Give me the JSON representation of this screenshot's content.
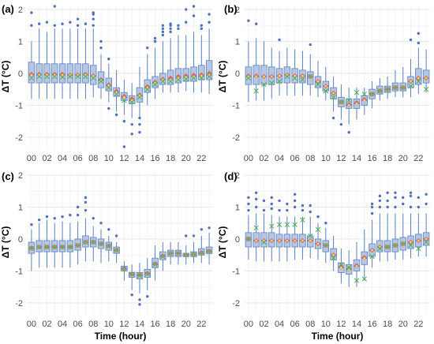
{
  "colors": {
    "box_fill": "#a9bde0",
    "box_stroke": "#5b7fbe",
    "outlier": "#4f73b8",
    "mean_diamond": "#e05050",
    "median_point": "#f5d64a",
    "cross_marker": "#4caf50",
    "grid": "#e6e6e6"
  },
  "chart_data": [
    {
      "type": "box",
      "panel_label": "(a)",
      "x_tick_labels": [
        "00",
        "02",
        "04",
        "06",
        "08",
        "10",
        "12",
        "14",
        "16",
        "18",
        "20",
        "22"
      ],
      "y_tick_labels": [
        "-2",
        "-1",
        "0",
        "1",
        "2"
      ],
      "ylabel": "ΔT (°C)",
      "xlabel": "",
      "ylim": [
        -2.4,
        2.1
      ],
      "hours": [
        0,
        1,
        2,
        3,
        4,
        5,
        6,
        7,
        8,
        9,
        10,
        11,
        12,
        13,
        14,
        15,
        16,
        17,
        18,
        19,
        20,
        21,
        22,
        23
      ],
      "q1": [
        -0.3,
        -0.3,
        -0.3,
        -0.3,
        -0.3,
        -0.3,
        -0.3,
        -0.3,
        -0.35,
        -0.45,
        -0.55,
        -0.72,
        -0.85,
        -0.95,
        -0.9,
        -0.6,
        -0.45,
        -0.35,
        -0.35,
        -0.3,
        -0.25,
        -0.25,
        -0.2,
        -0.2
      ],
      "median": [
        -0.05,
        -0.05,
        -0.05,
        -0.05,
        -0.05,
        -0.05,
        -0.05,
        -0.05,
        -0.08,
        -0.22,
        -0.38,
        -0.6,
        -0.75,
        -0.85,
        -0.7,
        -0.45,
        -0.3,
        -0.2,
        -0.2,
        -0.15,
        -0.12,
        -0.1,
        -0.08,
        -0.05
      ],
      "q3": [
        0.35,
        0.3,
        0.3,
        0.3,
        0.3,
        0.3,
        0.3,
        0.3,
        0.25,
        0.05,
        -0.15,
        -0.45,
        -0.6,
        -0.7,
        -0.45,
        -0.2,
        -0.1,
        0.0,
        0.1,
        0.15,
        0.15,
        0.2,
        0.25,
        0.4
      ],
      "whisker_low": [
        -0.8,
        -0.8,
        -0.8,
        -0.8,
        -0.8,
        -0.8,
        -0.8,
        -0.8,
        -0.75,
        -0.8,
        -0.9,
        -1.2,
        -1.3,
        -1.4,
        -1.4,
        -1.0,
        -0.8,
        -0.6,
        -0.6,
        -0.6,
        -0.55,
        -0.6,
        -0.6,
        -0.65
      ],
      "whisker_high": [
        1.0,
        1.4,
        1.3,
        1.4,
        1.4,
        1.4,
        1.4,
        1.4,
        1.4,
        0.6,
        0.3,
        0.1,
        -0.2,
        -0.3,
        0.2,
        0.6,
        0.8,
        1.0,
        1.1,
        1.2,
        1.2,
        1.3,
        1.2,
        1.4
      ],
      "mean": [
        -0.03,
        -0.03,
        -0.03,
        -0.03,
        -0.03,
        -0.05,
        -0.05,
        -0.03,
        -0.08,
        -0.2,
        -0.36,
        -0.56,
        -0.72,
        -0.8,
        -0.68,
        -0.42,
        -0.28,
        -0.18,
        -0.15,
        -0.1,
        -0.08,
        -0.06,
        -0.05,
        0.0
      ],
      "cross": [
        -0.15,
        -0.1,
        -0.1,
        -0.1,
        -0.12,
        -0.1,
        -0.1,
        -0.1,
        -0.15,
        -0.25,
        -0.45,
        -0.65,
        -0.85,
        -0.9,
        -0.75,
        -0.5,
        -0.35,
        -0.25,
        -0.25,
        -0.2,
        -0.18,
        -0.15,
        -0.15,
        -0.1
      ],
      "outliers": [
        [
          0,
          1.5
        ],
        [
          0,
          1.9
        ],
        [
          1,
          1.55
        ],
        [
          2,
          1.6
        ],
        [
          3,
          1.5
        ],
        [
          3,
          2.1
        ],
        [
          4,
          1.55
        ],
        [
          5,
          1.6
        ],
        [
          6,
          1.5
        ],
        [
          6,
          1.7
        ],
        [
          7,
          1.55
        ],
        [
          8,
          1.5
        ],
        [
          8,
          1.7
        ],
        [
          8,
          1.85
        ],
        [
          8,
          1.9
        ],
        [
          9,
          0.8
        ],
        [
          9,
          1.0
        ],
        [
          10,
          0.45
        ],
        [
          10,
          -1.1
        ],
        [
          11,
          -1.3
        ],
        [
          12,
          -1.5
        ],
        [
          12,
          -2.3
        ],
        [
          13,
          -1.6
        ],
        [
          13,
          -1.9
        ],
        [
          14,
          -1.4
        ],
        [
          14,
          -1.6
        ],
        [
          14,
          -1.85
        ],
        [
          15,
          0.8
        ],
        [
          16,
          1.0
        ],
        [
          16,
          1.1
        ],
        [
          17,
          1.2
        ],
        [
          17,
          1.3
        ],
        [
          17,
          1.4
        ],
        [
          17,
          1.5
        ],
        [
          18,
          1.3
        ],
        [
          18,
          1.4
        ],
        [
          18,
          1.5
        ],
        [
          18,
          1.55
        ],
        [
          19,
          1.4
        ],
        [
          19,
          1.5
        ],
        [
          20,
          2.0
        ],
        [
          20,
          1.6
        ],
        [
          21,
          2.1
        ],
        [
          21,
          1.8
        ],
        [
          22,
          1.4
        ],
        [
          22,
          1.5
        ],
        [
          23,
          1.6
        ],
        [
          23,
          1.85
        ]
      ]
    },
    {
      "type": "box",
      "panel_label": "(b)",
      "x_tick_labels": [
        "00",
        "02",
        "04",
        "06",
        "08",
        "10",
        "12",
        "14",
        "16",
        "18",
        "20",
        "22"
      ],
      "y_tick_labels": [
        "-2",
        "-1",
        "0",
        "1",
        "2"
      ],
      "ylabel": "ΔT (°C)",
      "xlabel": "",
      "ylim": [
        -2.4,
        2.1
      ],
      "hours": [
        0,
        1,
        2,
        3,
        4,
        5,
        6,
        7,
        8,
        9,
        10,
        11,
        12,
        13,
        14,
        15,
        16,
        17,
        18,
        19,
        20,
        21,
        22,
        23
      ],
      "q1": [
        -0.35,
        -0.35,
        -0.35,
        -0.35,
        -0.3,
        -0.3,
        -0.3,
        -0.3,
        -0.35,
        -0.45,
        -0.55,
        -0.8,
        -1.05,
        -1.1,
        -1.1,
        -1.0,
        -0.8,
        -0.65,
        -0.6,
        -0.55,
        -0.55,
        -0.45,
        -0.35,
        -0.3
      ],
      "median": [
        -0.1,
        -0.1,
        -0.1,
        -0.1,
        -0.08,
        -0.05,
        -0.08,
        -0.08,
        -0.1,
        -0.25,
        -0.4,
        -0.62,
        -0.9,
        -1.0,
        -0.95,
        -0.85,
        -0.65,
        -0.55,
        -0.5,
        -0.45,
        -0.45,
        -0.25,
        -0.15,
        -0.15
      ],
      "q3": [
        0.2,
        0.25,
        0.25,
        0.2,
        0.15,
        0.2,
        0.15,
        0.1,
        0.05,
        -0.1,
        -0.25,
        -0.45,
        -0.75,
        -0.8,
        -0.8,
        -0.7,
        -0.5,
        -0.4,
        -0.4,
        -0.3,
        -0.3,
        -0.1,
        0.15,
        0.1
      ],
      "whisker_low": [
        -0.9,
        -0.85,
        -0.85,
        -0.8,
        -0.7,
        -0.7,
        -0.7,
        -0.7,
        -0.7,
        -0.75,
        -0.85,
        -1.2,
        -1.45,
        -1.6,
        -1.45,
        -1.3,
        -1.1,
        -0.85,
        -0.8,
        -0.75,
        -0.75,
        -0.75,
        -0.65,
        -0.6
      ],
      "whisker_high": [
        1.0,
        1.1,
        1.0,
        0.8,
        0.7,
        0.8,
        0.75,
        0.7,
        0.6,
        0.4,
        0.2,
        -0.1,
        -0.35,
        -0.45,
        -0.45,
        -0.45,
        -0.25,
        -0.15,
        -0.1,
        0.1,
        0.2,
        0.45,
        0.8,
        0.75
      ],
      "mean": [
        -0.08,
        -0.08,
        -0.1,
        -0.1,
        -0.08,
        -0.05,
        -0.08,
        -0.08,
        -0.1,
        -0.25,
        -0.4,
        -0.62,
        -0.9,
        -0.98,
        -0.92,
        -0.82,
        -0.65,
        -0.55,
        -0.5,
        -0.45,
        -0.45,
        -0.25,
        -0.15,
        -0.15
      ],
      "cross": [
        -0.15,
        -0.55,
        -0.35,
        -0.3,
        -0.25,
        -0.1,
        -0.15,
        -0.2,
        -0.1,
        -0.35,
        -0.55,
        -0.75,
        -0.9,
        -0.85,
        -0.6,
        -0.65,
        -0.65,
        -0.55,
        -0.5,
        -0.45,
        -0.45,
        -0.4,
        -0.25,
        -0.5
      ],
      "outliers": [
        [
          0,
          1.65
        ],
        [
          1,
          1.55
        ],
        [
          4,
          1.05
        ],
        [
          8,
          0.9
        ],
        [
          11,
          -1.4
        ],
        [
          12,
          -1.6
        ],
        [
          13,
          -1.85
        ],
        [
          21,
          1.05
        ],
        [
          22,
          0.95
        ],
        [
          22,
          1.25
        ]
      ]
    },
    {
      "type": "box",
      "panel_label": "(c)",
      "x_tick_labels": [
        "00",
        "02",
        "04",
        "06",
        "08",
        "10",
        "12",
        "14",
        "16",
        "18",
        "20",
        "22"
      ],
      "y_tick_labels": [
        "-2",
        "-1",
        "0",
        "1",
        "2"
      ],
      "ylabel": "ΔT (°C)",
      "xlabel": "Time (hour)",
      "ylim": [
        -2.4,
        2.1
      ],
      "hours": [
        0,
        1,
        2,
        3,
        4,
        5,
        6,
        7,
        8,
        9,
        10,
        11,
        12,
        13,
        14,
        15,
        16,
        17,
        18,
        19,
        20,
        21,
        22,
        23
      ],
      "q1": [
        -0.45,
        -0.4,
        -0.4,
        -0.4,
        -0.4,
        -0.4,
        -0.35,
        -0.25,
        -0.25,
        -0.3,
        -0.35,
        -0.45,
        -1.0,
        -1.2,
        -1.25,
        -1.2,
        -0.9,
        -0.65,
        -0.55,
        -0.55,
        -0.55,
        -0.55,
        -0.5,
        -0.45
      ],
      "median": [
        -0.3,
        -0.25,
        -0.25,
        -0.25,
        -0.25,
        -0.25,
        -0.2,
        -0.1,
        -0.1,
        -0.15,
        -0.22,
        -0.35,
        -0.95,
        -1.1,
        -1.15,
        -1.1,
        -0.8,
        -0.55,
        -0.45,
        -0.45,
        -0.5,
        -0.5,
        -0.45,
        -0.4
      ],
      "q3": [
        -0.1,
        -0.05,
        -0.05,
        -0.05,
        -0.05,
        -0.05,
        0.0,
        0.1,
        0.05,
        0.0,
        -0.1,
        -0.25,
        -0.85,
        -1.05,
        -1.05,
        -0.95,
        -0.6,
        -0.4,
        -0.35,
        -0.35,
        -0.45,
        -0.4,
        -0.3,
        -0.25
      ],
      "whisker_low": [
        -1.0,
        -0.9,
        -0.9,
        -0.9,
        -0.9,
        -0.9,
        -0.8,
        -0.7,
        -0.7,
        -0.75,
        -0.7,
        -0.75,
        -1.3,
        -1.6,
        -1.7,
        -1.6,
        -1.3,
        -1.0,
        -0.8,
        -0.8,
        -0.8,
        -0.75,
        -0.75,
        -0.8
      ],
      "whisker_high": [
        0.3,
        0.5,
        0.6,
        0.5,
        0.55,
        0.5,
        0.55,
        0.65,
        0.4,
        0.3,
        0.1,
        -0.1,
        -0.7,
        -0.8,
        -0.75,
        -0.6,
        -0.2,
        -0.1,
        -0.1,
        -0.1,
        -0.2,
        -0.1,
        0.1,
        0.2
      ],
      "mean": [
        -0.28,
        -0.25,
        -0.25,
        -0.25,
        -0.25,
        -0.25,
        -0.2,
        -0.1,
        -0.1,
        -0.15,
        -0.22,
        -0.35,
        -0.93,
        -1.1,
        -1.13,
        -1.08,
        -0.78,
        -0.53,
        -0.45,
        -0.45,
        -0.5,
        -0.48,
        -0.43,
        -0.38
      ],
      "cross": [
        -0.3,
        -0.25,
        -0.25,
        -0.25,
        -0.25,
        -0.25,
        -0.2,
        -0.1,
        -0.1,
        -0.15,
        -0.22,
        -0.35,
        -0.95,
        -1.1,
        -1.15,
        -1.1,
        -0.8,
        -0.55,
        -0.45,
        -0.45,
        -0.5,
        -0.5,
        -0.45,
        -0.4
      ],
      "outliers": [
        [
          0,
          0.45
        ],
        [
          1,
          0.6
        ],
        [
          2,
          0.7
        ],
        [
          3,
          0.65
        ],
        [
          4,
          0.7
        ],
        [
          5,
          0.75
        ],
        [
          6,
          0.75
        ],
        [
          6,
          1.0
        ],
        [
          7,
          0.9
        ],
        [
          7,
          1.15
        ],
        [
          7,
          1.3
        ],
        [
          8,
          0.65
        ],
        [
          9,
          0.5
        ],
        [
          10,
          0.3
        ],
        [
          11,
          0.1
        ],
        [
          13,
          -1.75
        ],
        [
          14,
          -1.9
        ],
        [
          14,
          -2.05
        ],
        [
          15,
          -1.8
        ],
        [
          20,
          0.1
        ],
        [
          21,
          0.1
        ],
        [
          22,
          0.3
        ],
        [
          23,
          0.35
        ]
      ]
    },
    {
      "type": "box",
      "panel_label": "(d)",
      "x_tick_labels": [
        "00",
        "02",
        "04",
        "06",
        "08",
        "10",
        "12",
        "14",
        "16",
        "18",
        "20",
        "22"
      ],
      "y_tick_labels": [
        "-2",
        "-1",
        "0",
        "1",
        "2"
      ],
      "ylabel": "ΔT (°C)",
      "xlabel": "Time (hour)",
      "ylim": [
        -2.4,
        2.1
      ],
      "hours": [
        0,
        1,
        2,
        3,
        4,
        5,
        6,
        7,
        8,
        9,
        10,
        11,
        12,
        13,
        14,
        15,
        16,
        17,
        18,
        19,
        20,
        21,
        22,
        23
      ],
      "q1": [
        -0.25,
        -0.25,
        -0.25,
        -0.25,
        -0.25,
        -0.25,
        -0.25,
        -0.25,
        -0.25,
        -0.3,
        -0.4,
        -0.65,
        -1.05,
        -1.1,
        -1.0,
        -0.8,
        -0.55,
        -0.4,
        -0.4,
        -0.4,
        -0.35,
        -0.3,
        -0.25,
        -0.2
      ],
      "median": [
        0.0,
        -0.05,
        -0.05,
        -0.05,
        -0.05,
        -0.05,
        -0.05,
        -0.05,
        -0.05,
        -0.15,
        -0.2,
        -0.5,
        -0.9,
        -0.95,
        -0.85,
        -0.6,
        -0.35,
        -0.25,
        -0.25,
        -0.2,
        -0.15,
        -0.1,
        -0.05,
        0.0
      ],
      "q3": [
        0.2,
        0.2,
        0.2,
        0.2,
        0.15,
        0.15,
        0.15,
        0.15,
        0.1,
        0.0,
        -0.05,
        -0.3,
        -0.75,
        -0.8,
        -0.65,
        -0.4,
        -0.15,
        -0.05,
        -0.05,
        0.0,
        0.05,
        0.1,
        0.15,
        0.2
      ],
      "whisker_low": [
        -0.65,
        -0.7,
        -0.7,
        -0.7,
        -0.7,
        -0.7,
        -0.65,
        -0.65,
        -0.6,
        -0.65,
        -0.75,
        -1.0,
        -1.4,
        -1.5,
        -1.5,
        -1.3,
        -0.9,
        -0.7,
        -0.7,
        -0.65,
        -0.65,
        -0.6,
        -0.55,
        -0.55
      ],
      "whisker_high": [
        0.75,
        0.8,
        0.8,
        0.75,
        0.7,
        0.7,
        0.7,
        0.7,
        0.7,
        0.5,
        0.35,
        0.1,
        -0.3,
        -0.35,
        -0.1,
        0.3,
        0.6,
        0.8,
        0.8,
        0.8,
        0.8,
        0.8,
        0.8,
        0.8
      ],
      "mean": [
        0.0,
        -0.05,
        -0.05,
        -0.05,
        -0.05,
        -0.05,
        -0.05,
        -0.05,
        -0.05,
        -0.15,
        -0.2,
        -0.5,
        -0.88,
        -0.93,
        -0.83,
        -0.58,
        -0.35,
        -0.25,
        -0.25,
        -0.2,
        -0.15,
        -0.1,
        -0.05,
        0.0
      ],
      "cross": [
        0.0,
        0.35,
        -0.1,
        0.4,
        0.45,
        0.45,
        0.45,
        0.6,
        0.1,
        0.3,
        -0.2,
        -0.6,
        -0.8,
        -0.9,
        -1.3,
        -1.25,
        -0.55,
        -0.3,
        -0.25,
        -0.2,
        -0.15,
        -0.2,
        -0.3,
        -0.1
      ],
      "outliers": [
        [
          0,
          0.9
        ],
        [
          0,
          1.1
        ],
        [
          0,
          1.3
        ],
        [
          1,
          1.0
        ],
        [
          1,
          1.25
        ],
        [
          1,
          1.45
        ],
        [
          2,
          0.9
        ],
        [
          2,
          1.2
        ],
        [
          3,
          0.95
        ],
        [
          3,
          1.1
        ],
        [
          3,
          1.3
        ],
        [
          4,
          0.9
        ],
        [
          4,
          1.2
        ],
        [
          5,
          0.9
        ],
        [
          5,
          1.1
        ],
        [
          6,
          1.0
        ],
        [
          6,
          1.2
        ],
        [
          6,
          1.4
        ],
        [
          7,
          0.9
        ],
        [
          7,
          1.05
        ],
        [
          8,
          0.85
        ],
        [
          8,
          1.05
        ],
        [
          9,
          0.7
        ],
        [
          10,
          0.5
        ],
        [
          16,
          0.8
        ],
        [
          16,
          1.0
        ],
        [
          16,
          1.1
        ],
        [
          17,
          1.0
        ],
        [
          17,
          1.2
        ],
        [
          17,
          1.35
        ],
        [
          18,
          1.0
        ],
        [
          18,
          1.2
        ],
        [
          18,
          1.45
        ],
        [
          19,
          1.0
        ],
        [
          19,
          1.3
        ],
        [
          19,
          1.45
        ],
        [
          20,
          1.1
        ],
        [
          20,
          1.3
        ],
        [
          21,
          1.0
        ],
        [
          21,
          1.35
        ],
        [
          21,
          1.45
        ],
        [
          22,
          1.0
        ],
        [
          22,
          1.3
        ],
        [
          23,
          1.1
        ],
        [
          23,
          1.4
        ]
      ]
    }
  ]
}
